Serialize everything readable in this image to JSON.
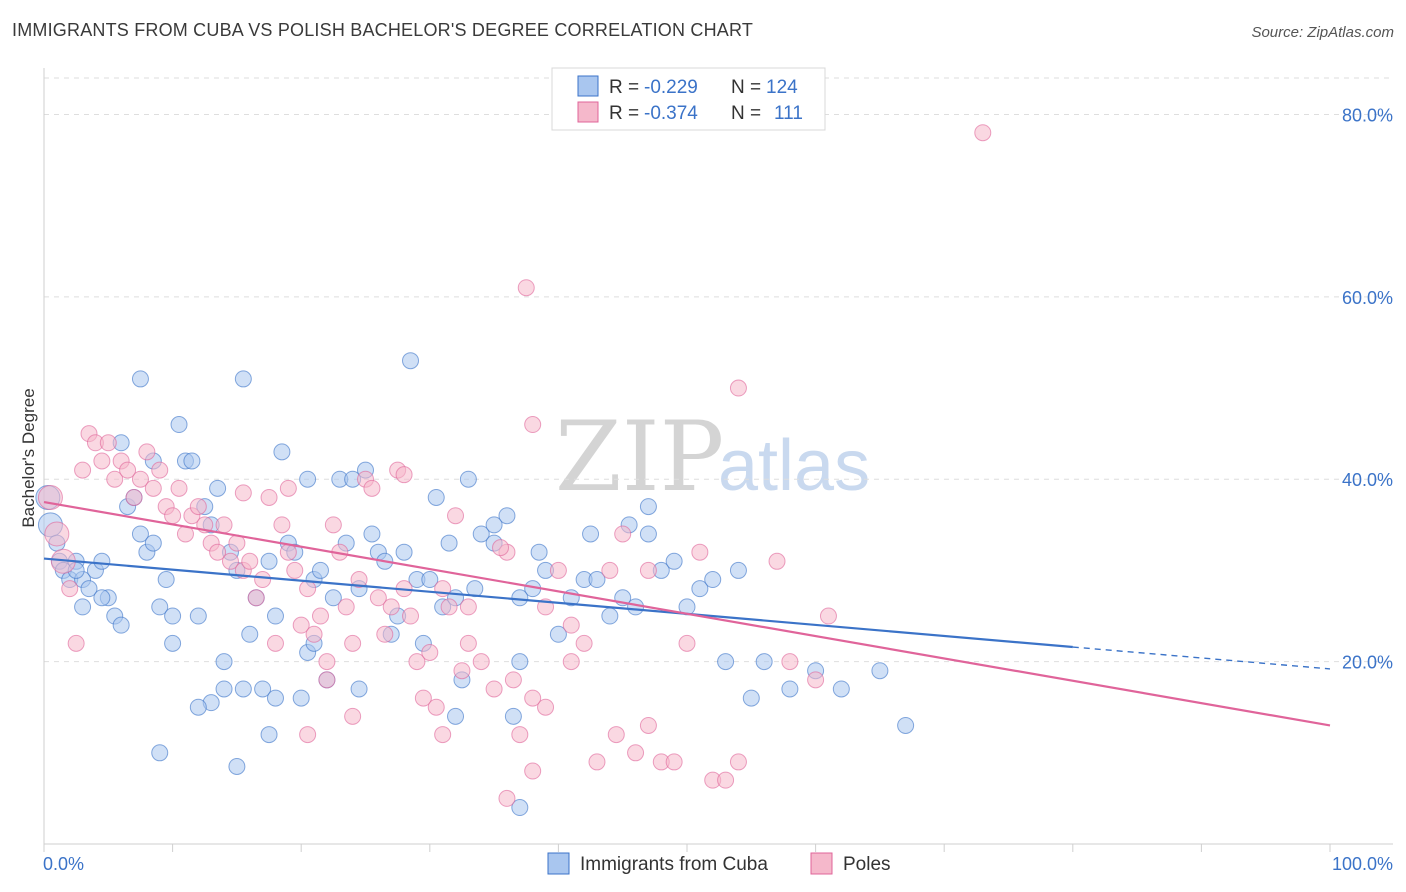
{
  "title": "IMMIGRANTS FROM CUBA VS POLISH BACHELOR'S DEGREE CORRELATION CHART",
  "source": "Source: ZipAtlas.com",
  "watermark": {
    "zip": "ZIP",
    "atlas": "atlas"
  },
  "colors": {
    "blue": "#3b73c8",
    "pink": "#e0649a",
    "blue_fill": "#a9c6ef",
    "pink_fill": "#f5b8cb"
  },
  "chart_data": {
    "type": "scatter",
    "title": "IMMIGRANTS FROM CUBA VS POLISH BACHELOR'S DEGREE CORRELATION CHART",
    "xlabel": "",
    "ylabel": "Bachelor's Degree",
    "xlim": [
      0,
      100
    ],
    "ylim": [
      0,
      84
    ],
    "x_tick_labels": [
      "0.0%",
      "100.0%"
    ],
    "y_ticks": [
      20,
      40,
      60,
      80
    ],
    "y_tick_labels": [
      "20.0%",
      "40.0%",
      "60.0%",
      "80.0%"
    ],
    "grid": true,
    "legend_position": "top-center",
    "legend": [
      {
        "r_label": "R =",
        "r": "-0.229",
        "n_label": "N =",
        "n": "124",
        "color": "#3b73c8"
      },
      {
        "r_label": "R =",
        "r": "-0.374",
        "n_label": "N =",
        "n": "111",
        "color": "#e0649a"
      }
    ],
    "series": [
      {
        "name": "Immigrants from Cuba",
        "color": "#3b73c8",
        "trend": {
          "x0": 0,
          "y0": 31.3,
          "x1": 80,
          "y1": 21.6,
          "dash_to_x": 100,
          "dash_to_y": 19.2
        },
        "points": [
          [
            0.3,
            38
          ],
          [
            0.5,
            35
          ],
          [
            1,
            33
          ],
          [
            1.2,
            31
          ],
          [
            1.5,
            30
          ],
          [
            2,
            29
          ],
          [
            2.5,
            31
          ],
          [
            3,
            29
          ],
          [
            3.5,
            28
          ],
          [
            4,
            30
          ],
          [
            4.5,
            31
          ],
          [
            5,
            27
          ],
          [
            5.5,
            25
          ],
          [
            6,
            24
          ],
          [
            6.5,
            37
          ],
          [
            7,
            38
          ],
          [
            7.5,
            34
          ],
          [
            8,
            32
          ],
          [
            8.5,
            33
          ],
          [
            9,
            26
          ],
          [
            9.5,
            29
          ],
          [
            10,
            22
          ],
          [
            10.5,
            46
          ],
          [
            11,
            42
          ],
          [
            11.5,
            42
          ],
          [
            12,
            25
          ],
          [
            12.5,
            37
          ],
          [
            13,
            35
          ],
          [
            13.5,
            39
          ],
          [
            14,
            20
          ],
          [
            14.5,
            32
          ],
          [
            15,
            30
          ],
          [
            15.5,
            17
          ],
          [
            16,
            23
          ],
          [
            16.5,
            27
          ],
          [
            17,
            17
          ],
          [
            17.5,
            31
          ],
          [
            18,
            25
          ],
          [
            18.5,
            43
          ],
          [
            19,
            33
          ],
          [
            19.5,
            32
          ],
          [
            20,
            16
          ],
          [
            20.5,
            21
          ],
          [
            21,
            29
          ],
          [
            21.5,
            30
          ],
          [
            22,
            18
          ],
          [
            22.5,
            27
          ],
          [
            23,
            40
          ],
          [
            23.5,
            33
          ],
          [
            24,
            40
          ],
          [
            24.5,
            28
          ],
          [
            25,
            41
          ],
          [
            25.5,
            34
          ],
          [
            26,
            32
          ],
          [
            26.5,
            31
          ],
          [
            27,
            23
          ],
          [
            27.5,
            25
          ],
          [
            28,
            32
          ],
          [
            28.5,
            53
          ],
          [
            29,
            29
          ],
          [
            29.5,
            22
          ],
          [
            30,
            29
          ],
          [
            30.5,
            38
          ],
          [
            31,
            26
          ],
          [
            31.5,
            33
          ],
          [
            32,
            14
          ],
          [
            32.5,
            18
          ],
          [
            33,
            40
          ],
          [
            33.5,
            28
          ],
          [
            34,
            34
          ],
          [
            35,
            33
          ],
          [
            36,
            36
          ],
          [
            37,
            20
          ],
          [
            38,
            28
          ],
          [
            39,
            30
          ],
          [
            40,
            23
          ],
          [
            41,
            27
          ],
          [
            42,
            29
          ],
          [
            43,
            29
          ],
          [
            44,
            25
          ],
          [
            45,
            27
          ],
          [
            46,
            26
          ],
          [
            47,
            34
          ],
          [
            48,
            30
          ],
          [
            49,
            31
          ],
          [
            50,
            26
          ],
          [
            51,
            28
          ],
          [
            52,
            29
          ],
          [
            53,
            20
          ],
          [
            54,
            30
          ],
          [
            55,
            16
          ],
          [
            56,
            20
          ],
          [
            58,
            17
          ],
          [
            60,
            19
          ],
          [
            62,
            17
          ],
          [
            65,
            19
          ],
          [
            67,
            13
          ],
          [
            7.5,
            51
          ],
          [
            15.5,
            51
          ],
          [
            9,
            10
          ],
          [
            15,
            8.5
          ],
          [
            17.5,
            12
          ],
          [
            18,
            16
          ],
          [
            13,
            15.5
          ],
          [
            12,
            15
          ],
          [
            14,
            17
          ],
          [
            21,
            22
          ],
          [
            35,
            35
          ],
          [
            37,
            27
          ],
          [
            32,
            27
          ],
          [
            45.5,
            35
          ],
          [
            47,
            37
          ],
          [
            38.5,
            32
          ],
          [
            8.5,
            42
          ],
          [
            24.5,
            17
          ],
          [
            36.5,
            14
          ],
          [
            42.5,
            34
          ],
          [
            37,
            4
          ],
          [
            6,
            44
          ],
          [
            3,
            26
          ],
          [
            10,
            25
          ],
          [
            2.5,
            30
          ],
          [
            4.5,
            27
          ],
          [
            20.5,
            40
          ]
        ]
      },
      {
        "name": "Poles",
        "color": "#e0649a",
        "trend": {
          "x0": 0,
          "y0": 37.5,
          "x1": 100,
          "y1": 13.0
        },
        "points": [
          [
            0.5,
            38
          ],
          [
            1,
            34
          ],
          [
            1.5,
            31
          ],
          [
            2,
            28
          ],
          [
            2.5,
            22
          ],
          [
            3,
            41
          ],
          [
            3.5,
            45
          ],
          [
            4,
            44
          ],
          [
            4.5,
            42
          ],
          [
            5,
            44
          ],
          [
            5.5,
            40
          ],
          [
            6,
            42
          ],
          [
            6.5,
            41
          ],
          [
            7,
            38
          ],
          [
            7.5,
            40
          ],
          [
            8,
            43
          ],
          [
            8.5,
            39
          ],
          [
            9,
            41
          ],
          [
            9.5,
            37
          ],
          [
            10,
            36
          ],
          [
            10.5,
            39
          ],
          [
            11,
            34
          ],
          [
            11.5,
            36
          ],
          [
            12,
            37
          ],
          [
            12.5,
            35
          ],
          [
            13,
            33
          ],
          [
            13.5,
            32
          ],
          [
            14,
            35
          ],
          [
            14.5,
            31
          ],
          [
            15,
            33
          ],
          [
            15.5,
            30
          ],
          [
            16,
            31
          ],
          [
            16.5,
            27
          ],
          [
            17,
            29
          ],
          [
            17.5,
            38
          ],
          [
            18,
            22
          ],
          [
            18.5,
            35
          ],
          [
            19,
            32
          ],
          [
            19.5,
            30
          ],
          [
            20,
            24
          ],
          [
            20.5,
            28
          ],
          [
            21,
            23
          ],
          [
            21.5,
            25
          ],
          [
            22,
            18
          ],
          [
            22.5,
            35
          ],
          [
            23,
            32
          ],
          [
            23.5,
            26
          ],
          [
            24,
            22
          ],
          [
            24.5,
            29
          ],
          [
            25,
            40
          ],
          [
            25.5,
            39
          ],
          [
            26,
            27
          ],
          [
            26.5,
            23
          ],
          [
            27,
            26
          ],
          [
            27.5,
            41
          ],
          [
            28,
            28
          ],
          [
            28.5,
            25
          ],
          [
            29,
            20
          ],
          [
            29.5,
            16
          ],
          [
            30,
            21
          ],
          [
            30.5,
            15
          ],
          [
            31,
            12
          ],
          [
            31.5,
            26
          ],
          [
            32,
            36
          ],
          [
            33,
            22
          ],
          [
            34,
            20
          ],
          [
            35,
            17
          ],
          [
            36,
            32
          ],
          [
            37,
            12
          ],
          [
            38,
            46
          ],
          [
            39,
            26
          ],
          [
            40,
            30
          ],
          [
            41,
            24
          ],
          [
            42,
            22
          ],
          [
            43,
            9
          ],
          [
            44,
            30
          ],
          [
            45,
            34
          ],
          [
            46,
            10
          ],
          [
            47,
            13
          ],
          [
            48,
            9
          ],
          [
            49,
            9
          ],
          [
            50,
            22
          ],
          [
            51,
            32
          ],
          [
            52,
            7
          ],
          [
            53,
            7
          ],
          [
            54,
            9
          ],
          [
            57,
            31
          ],
          [
            58,
            20
          ],
          [
            60,
            18
          ],
          [
            61,
            25
          ],
          [
            73,
            78
          ],
          [
            37.5,
            61
          ],
          [
            54,
            50
          ],
          [
            28,
            40.5
          ],
          [
            35.5,
            32.5
          ],
          [
            38,
            16
          ],
          [
            31,
            28
          ],
          [
            15.5,
            38.5
          ],
          [
            41,
            20
          ],
          [
            44.5,
            12
          ],
          [
            24,
            14
          ],
          [
            32.5,
            19
          ],
          [
            36,
            5
          ],
          [
            38,
            8
          ],
          [
            39,
            15
          ],
          [
            19,
            39
          ],
          [
            22,
            20
          ],
          [
            33,
            26
          ],
          [
            36.5,
            18
          ],
          [
            47,
            30
          ],
          [
            20.5,
            12
          ]
        ]
      }
    ]
  },
  "bottom_legend": [
    {
      "label": "Immigrants from Cuba",
      "color": "#3b73c8"
    },
    {
      "label": "Poles",
      "color": "#e0649a"
    }
  ]
}
